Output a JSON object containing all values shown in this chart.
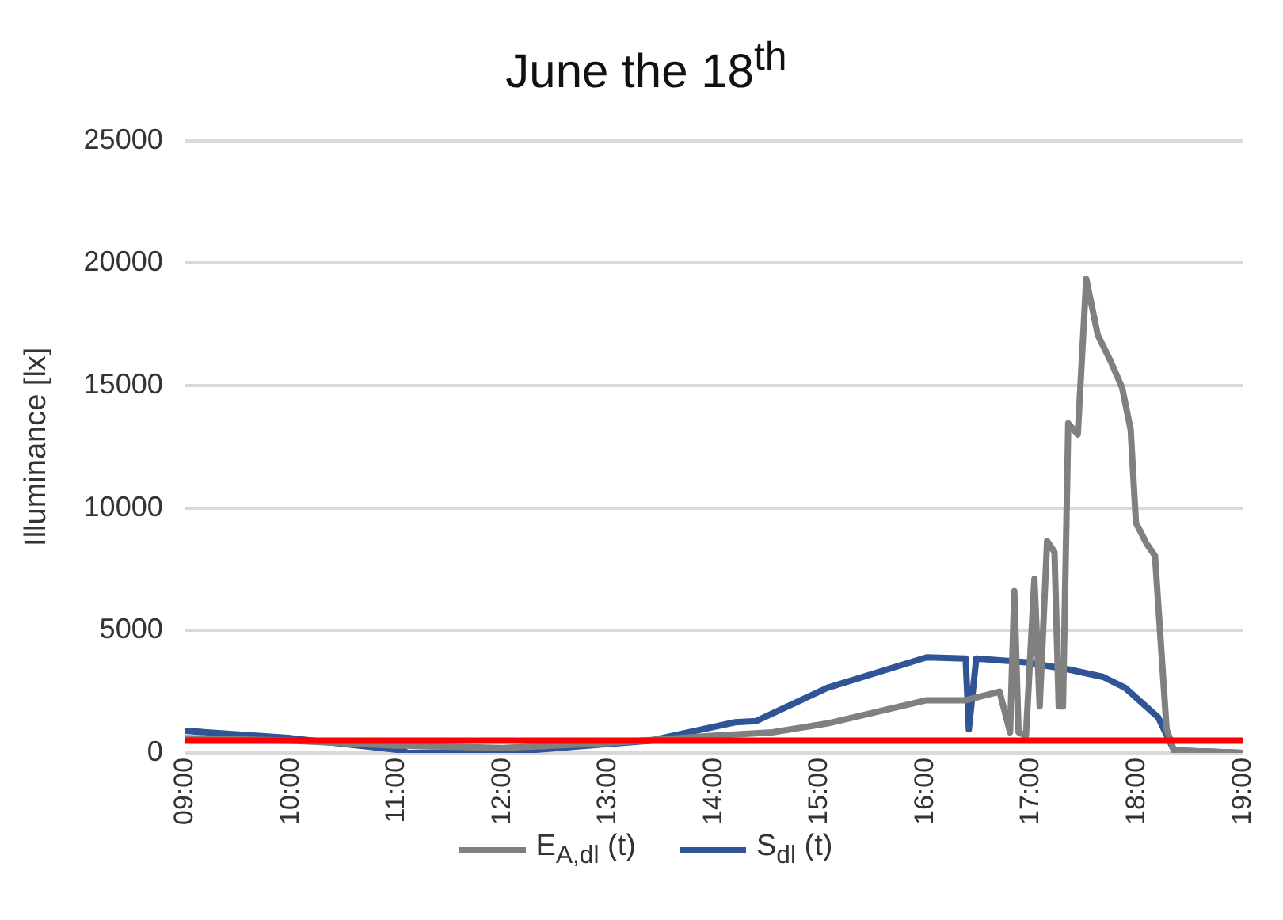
{
  "chart_data": {
    "type": "line",
    "title": "June the 18$^{th}$",
    "ylabel": "Illuminance [lx]",
    "xlim": [
      9,
      19
    ],
    "xticks": [
      {
        "value": 9,
        "label": "09:00"
      },
      {
        "value": 10,
        "label": "10:00"
      },
      {
        "value": 11,
        "label": "11:00"
      },
      {
        "value": 12,
        "label": "12:00"
      },
      {
        "value": 13,
        "label": "13:00"
      },
      {
        "value": 14,
        "label": "14:00"
      },
      {
        "value": 15,
        "label": "15:00"
      },
      {
        "value": 16,
        "label": "16:00"
      },
      {
        "value": 17,
        "label": "17:00"
      },
      {
        "value": 18,
        "label": "18:00"
      },
      {
        "value": 19,
        "label": "19:00"
      }
    ],
    "ylim": [
      0,
      25000
    ],
    "yticks": [
      0,
      5000,
      10000,
      15000,
      20000,
      25000
    ],
    "grid": "y",
    "legend": "bottom",
    "marker": "none",
    "line_style": "solid",
    "series": [
      {
        "name": "E$_{A,dl}$ (t)",
        "color": "#808080",
        "x": [
          9,
          10,
          11,
          12,
          13,
          14,
          14.55,
          15.07,
          16.01,
          16.38,
          16.7,
          16.8,
          16.84,
          16.88,
          16.95,
          17.03,
          17.08,
          17.15,
          17.22,
          17.26,
          17.3,
          17.35,
          17.44,
          17.52,
          17.63,
          17.75,
          17.86,
          17.94,
          17.99,
          18.09,
          18.17,
          18.28,
          18.35,
          19
        ],
        "values": [
          600,
          500,
          300,
          200,
          400,
          700,
          840,
          1200,
          2150,
          2150,
          2500,
          840,
          6600,
          840,
          700,
          7100,
          1900,
          8650,
          8200,
          1900,
          1900,
          13450,
          13000,
          19350,
          17050,
          16000,
          14900,
          13200,
          9400,
          8550,
          8050,
          960,
          100,
          0
        ]
      },
      {
        "name": "S$_{dl}$ (t)",
        "color": "#2f5597",
        "x": [
          9,
          10,
          11.06,
          11.1,
          12.1,
          13.4,
          14.2,
          14.4,
          15.07,
          16.01,
          16.38,
          16.41,
          16.48,
          16.95,
          17.36,
          17.68,
          17.89,
          18.2,
          18.35,
          19
        ],
        "values": [
          900,
          600,
          100,
          0,
          50,
          500,
          1250,
          1300,
          2650,
          3900,
          3850,
          960,
          3850,
          3700,
          3400,
          3100,
          2650,
          1450,
          100,
          0
        ]
      }
    ],
    "ref_lines": [
      {
        "axis": "y",
        "value": 500,
        "color": "#ff0000"
      }
    ]
  }
}
